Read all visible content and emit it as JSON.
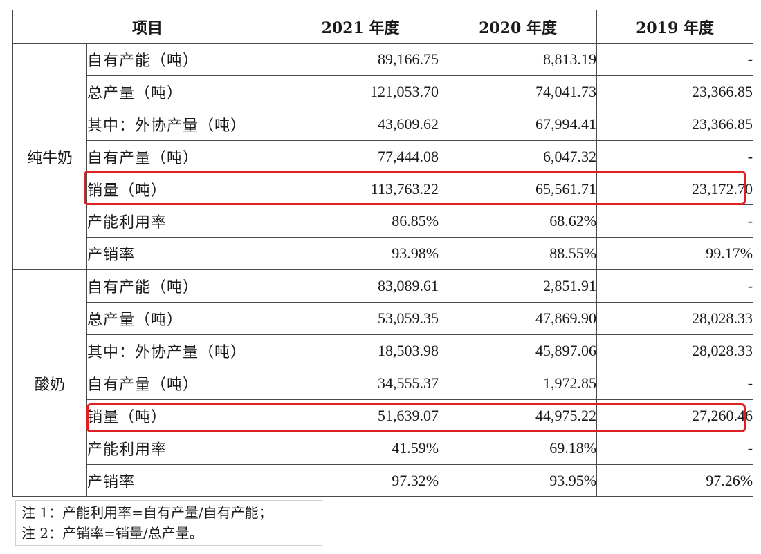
{
  "header": {
    "item": "项目",
    "y2021": "2021 年度",
    "y2020": "2020 年度",
    "y2019": "2019 年度"
  },
  "groups": [
    {
      "name": "纯牛奶",
      "rows": [
        {
          "label": "自有产能（吨）",
          "v2021": "89,166.75",
          "v2020": "8,813.19",
          "v2019": "-"
        },
        {
          "label": "总产量（吨）",
          "v2021": "121,053.70",
          "v2020": "74,041.73",
          "v2019": "23,366.85"
        },
        {
          "label": "其中：外协产量（吨）",
          "v2021": "43,609.62",
          "v2020": "67,994.41",
          "v2019": "23,366.85"
        },
        {
          "label": "自有产量（吨）",
          "v2021": "77,444.08",
          "v2020": "6,047.32",
          "v2019": "-"
        },
        {
          "label": "销量（吨）",
          "v2021": "113,763.22",
          "v2020": "65,561.71",
          "v2019": "23,172.70"
        },
        {
          "label": "产能利用率",
          "v2021": "86.85%",
          "v2020": "68.62%",
          "v2019": "-"
        },
        {
          "label": "产销率",
          "v2021": "93.98%",
          "v2020": "88.55%",
          "v2019": "99.17%"
        }
      ]
    },
    {
      "name": "酸奶",
      "rows": [
        {
          "label": "自有产能（吨）",
          "v2021": "83,089.61",
          "v2020": "2,851.91",
          "v2019": "-"
        },
        {
          "label": "总产量（吨）",
          "v2021": "53,059.35",
          "v2020": "47,869.90",
          "v2019": "28,028.33"
        },
        {
          "label": "其中：外协产量（吨）",
          "v2021": "18,503.98",
          "v2020": "45,897.06",
          "v2019": "28,028.33"
        },
        {
          "label": "自有产量（吨）",
          "v2021": "34,555.37",
          "v2020": "1,972.85",
          "v2019": "-"
        },
        {
          "label": "销量（吨）",
          "v2021": "51,639.07",
          "v2020": "44,975.22",
          "v2019": "27,260.46"
        },
        {
          "label": "产能利用率",
          "v2021": "41.59%",
          "v2020": "69.18%",
          "v2019": "-"
        },
        {
          "label": "产销率",
          "v2021": "97.32%",
          "v2020": "93.95%",
          "v2019": "97.26%"
        }
      ]
    }
  ],
  "notes": {
    "note1": "注 1：产能利用率=自有产量/自有产能；",
    "note2": "注 2：产销率=销量/总产量。"
  },
  "highlight_color": "#e02020"
}
